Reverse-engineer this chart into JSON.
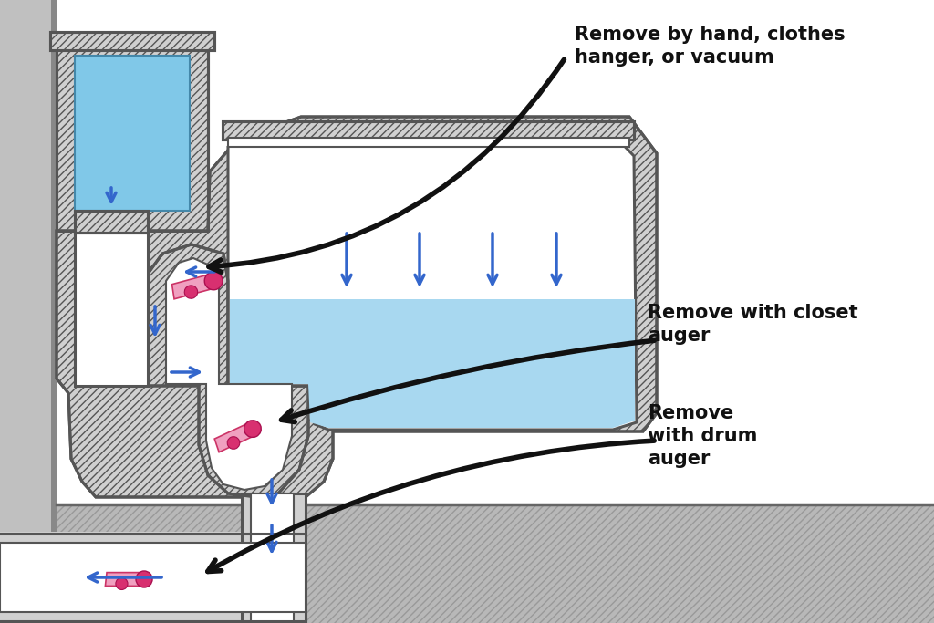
{
  "bg_color": "#ffffff",
  "wall_color": "#c0c0c0",
  "toilet_gray": "#d0d0d0",
  "toilet_outline": "#555555",
  "water_blue": "#a8d8f0",
  "tank_blue": "#80c8e8",
  "pipe_white": "#ffffff",
  "floor_gray": "#b8b8b8",
  "sock_pink": "#f0a0c0",
  "sock_dark": "#d03070",
  "arrow_blue": "#3366cc",
  "arrow_black": "#111111",
  "text_color": "#111111",
  "label1": "Remove by hand, clothes\nhanger, or vacuum",
  "label2": "Remove with closet\nauger",
  "label3": "Remove\nwith drum\nauger",
  "label_fontsize": 15
}
